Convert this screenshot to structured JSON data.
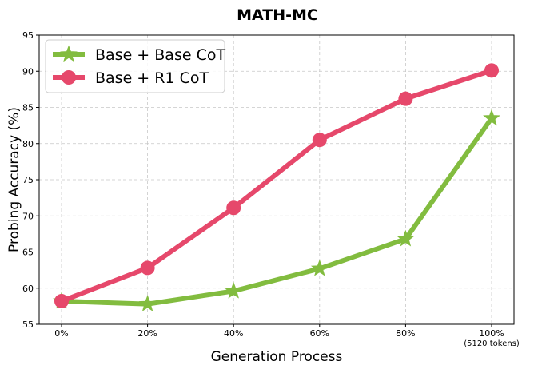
{
  "chart_data": {
    "type": "line",
    "title": "MATH-MC",
    "xlabel": "Generation Process",
    "ylabel": "Probing Accuracy (%)",
    "categories": [
      "0%",
      "20%",
      "40%",
      "60%",
      "80%",
      "100%"
    ],
    "category_sublabel": {
      "index": 5,
      "text": "(5120 tokens)"
    },
    "ylim": [
      55,
      95
    ],
    "yticks": [
      "55",
      "60",
      "65",
      "70",
      "75",
      "80",
      "85",
      "90",
      "95"
    ],
    "grid": true,
    "legend_position": "top-left",
    "series": [
      {
        "name": "Base + Base CoT",
        "color": "#82bc3f",
        "marker": "star",
        "values": [
          58.2,
          57.8,
          59.6,
          62.7,
          66.8,
          83.5
        ]
      },
      {
        "name": "Base + R1 CoT",
        "color": "#e6486b",
        "marker": "circle",
        "values": [
          58.2,
          62.8,
          71.1,
          80.5,
          86.2,
          90.1
        ]
      }
    ]
  }
}
